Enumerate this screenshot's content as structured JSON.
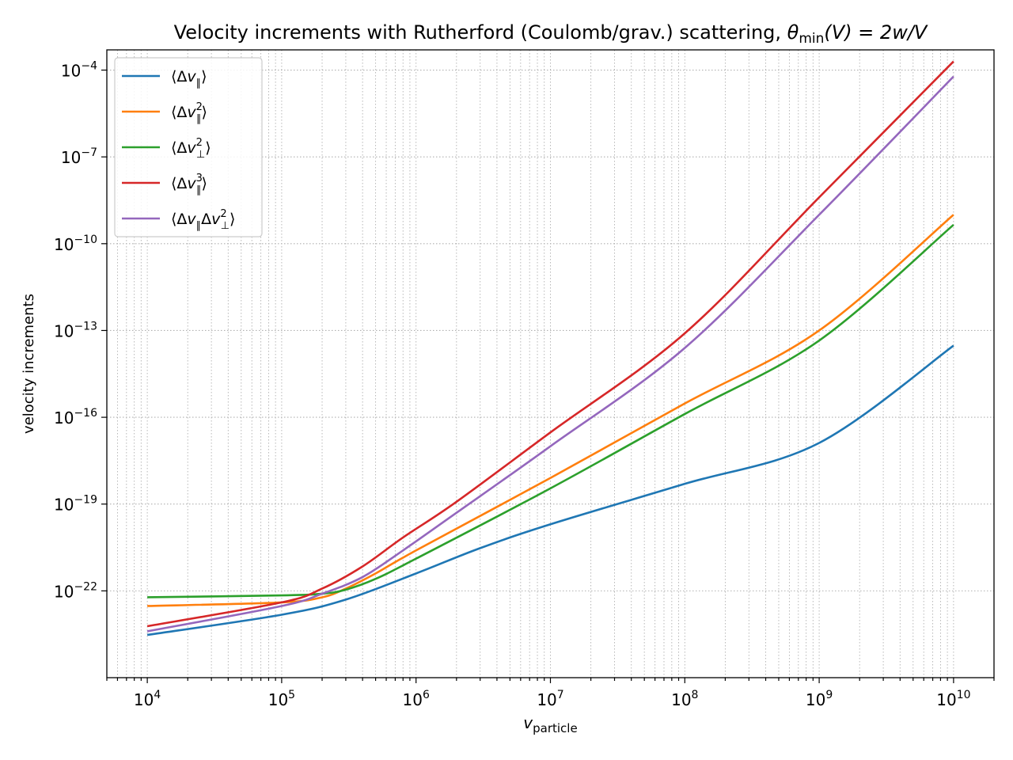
{
  "chart_data": {
    "type": "line",
    "title_plain": "Velocity increments with Rutherford (Coulomb/grav.) scattering, ",
    "title_math": {
      "theta": "θ",
      "sub": "min",
      "rest": "(V) = 2w/V"
    },
    "xlabel": {
      "base": "v",
      "sub": "particle"
    },
    "ylabel": "velocity increments",
    "x_scale": "log",
    "y_scale": "log",
    "xlim": [
      5000,
      20000000000
    ],
    "ylim": [
      1e-25,
      0.0005
    ],
    "grid": "major and minor, dotted",
    "legend_location": "upper-left",
    "x_ticks": [
      {
        "value": 10000,
        "base": "10",
        "exp": "4"
      },
      {
        "value": 100000,
        "base": "10",
        "exp": "5"
      },
      {
        "value": 1000000,
        "base": "10",
        "exp": "6"
      },
      {
        "value": 10000000,
        "base": "10",
        "exp": "7"
      },
      {
        "value": 100000000,
        "base": "10",
        "exp": "8"
      },
      {
        "value": 1000000000,
        "base": "10",
        "exp": "9"
      },
      {
        "value": 10000000000,
        "base": "10",
        "exp": "10"
      }
    ],
    "y_ticks": [
      {
        "value": 1e-22,
        "base": "10",
        "exp": "−22"
      },
      {
        "value": 1e-19,
        "base": "10",
        "exp": "−19"
      },
      {
        "value": 1e-16,
        "base": "10",
        "exp": "−16"
      },
      {
        "value": 1e-13,
        "base": "10",
        "exp": "−13"
      },
      {
        "value": 1e-10,
        "base": "10",
        "exp": "−10"
      },
      {
        "value": 1e-07,
        "base": "10",
        "exp": "−7"
      },
      {
        "value": 0.0001,
        "base": "10",
        "exp": "−4"
      }
    ],
    "series": [
      {
        "name": "⟨Δv∥⟩",
        "legend": {
          "pre": "⟨Δ",
          "v": "v",
          "sub": "∥",
          "sup": "",
          "tail": "⟩"
        },
        "color": "#1f77b4",
        "points": [
          [
            10000,
            3e-24
          ],
          [
            100000,
            1.5e-23
          ],
          [
            300000,
            5e-23
          ],
          [
            1000000,
            4e-22
          ],
          [
            3000000,
            3e-21
          ],
          [
            10000000,
            2e-20
          ],
          [
            100000000,
            5e-19
          ],
          [
            1000000000,
            1.3e-17
          ],
          [
            10000000000,
            3e-14
          ]
        ]
      },
      {
        "name": "⟨Δv∥²⟩",
        "legend": {
          "pre": "⟨Δ",
          "v": "v",
          "sub": "∥",
          "sup": "2",
          "tail": "⟩"
        },
        "color": "#ff7f0e",
        "points": [
          [
            10000,
            3e-23
          ],
          [
            100000,
            4e-23
          ],
          [
            200000,
            6e-23
          ],
          [
            300000,
            1.2e-22
          ],
          [
            500000,
            4e-22
          ],
          [
            1000000,
            2.5e-21
          ],
          [
            10000000,
            8e-19
          ],
          [
            100000000,
            3e-16
          ],
          [
            1000000000,
            1e-13
          ],
          [
            10000000000,
            1e-09
          ]
        ]
      },
      {
        "name": "⟨Δv⊥²⟩",
        "legend": {
          "pre": "⟨Δ",
          "v": "v",
          "sub": "⊥",
          "sup": "2",
          "tail": "⟩"
        },
        "color": "#2ca02c",
        "points": [
          [
            10000,
            6e-23
          ],
          [
            100000,
            7e-23
          ],
          [
            200000,
            8e-23
          ],
          [
            300000,
            1.1e-22
          ],
          [
            500000,
            2.6e-22
          ],
          [
            1000000,
            1.3e-21
          ],
          [
            10000000,
            3.5e-19
          ],
          [
            100000000,
            1.3e-16
          ],
          [
            1000000000,
            4.5e-14
          ],
          [
            10000000000,
            4.5e-10
          ]
        ]
      },
      {
        "name": "⟨Δv∥³⟩",
        "legend": {
          "pre": "⟨Δ",
          "v": "v",
          "sub": "∥",
          "sup": "3",
          "tail": "⟩"
        },
        "color": "#d62728",
        "points": [
          [
            10000,
            6e-24
          ],
          [
            100000,
            4e-23
          ],
          [
            200000,
            1.2e-22
          ],
          [
            400000,
            7e-22
          ],
          [
            800000,
            7e-21
          ],
          [
            2000000,
            1.2e-19
          ],
          [
            10000000,
            3e-17
          ],
          [
            100000000,
            8e-14
          ],
          [
            1000000000,
            4e-09
          ],
          [
            10000000000,
            0.0002
          ]
        ]
      },
      {
        "name": "⟨Δv∥Δv⊥²⟩",
        "legend": {
          "pre": "⟨Δ",
          "v": "v",
          "sub": "∥",
          "sup": "",
          "tail": "Δv⊥²⟩",
          "second": {
            "v": "v",
            "sub": "⊥",
            "sup": "2"
          }
        },
        "color": "#9467bd",
        "points": [
          [
            10000,
            4e-24
          ],
          [
            100000,
            3e-23
          ],
          [
            200000,
            8e-23
          ],
          [
            400000,
            3e-22
          ],
          [
            800000,
            2.5e-21
          ],
          [
            2000000,
            5e-20
          ],
          [
            10000000,
            1e-17
          ],
          [
            100000000,
            2.5e-14
          ],
          [
            1000000000,
            1e-09
          ],
          [
            10000000000,
            6e-05
          ]
        ]
      }
    ]
  }
}
